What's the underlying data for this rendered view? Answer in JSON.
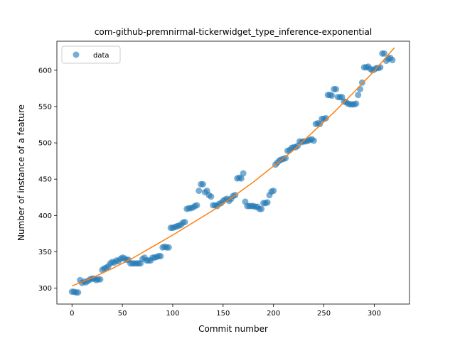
{
  "chart_data": {
    "type": "scatter",
    "title": "com-github-premnirmal-tickerwidget_type_inference-exponential",
    "xlabel": "Commit number",
    "ylabel": "Number of instance of a feature",
    "xlim": [
      -15,
      335
    ],
    "ylim": [
      278,
      640
    ],
    "xticks": [
      0,
      50,
      100,
      150,
      200,
      250,
      300
    ],
    "yticks": [
      300,
      350,
      400,
      450,
      500,
      550,
      600
    ],
    "grid": false,
    "legend_position": "top-left",
    "series": [
      {
        "name": "data",
        "kind": "points",
        "color": "#1f77b4",
        "points": [
          [
            0,
            295
          ],
          [
            2,
            295
          ],
          [
            4,
            294
          ],
          [
            6,
            294
          ],
          [
            8,
            311
          ],
          [
            10,
            307
          ],
          [
            12,
            309
          ],
          [
            14,
            308
          ],
          [
            16,
            310
          ],
          [
            18,
            312
          ],
          [
            20,
            313
          ],
          [
            22,
            313
          ],
          [
            24,
            311
          ],
          [
            26,
            312
          ],
          [
            28,
            312
          ],
          [
            30,
            325
          ],
          [
            32,
            327
          ],
          [
            34,
            328
          ],
          [
            36,
            330
          ],
          [
            38,
            334
          ],
          [
            40,
            336
          ],
          [
            42,
            335
          ],
          [
            44,
            338
          ],
          [
            46,
            337
          ],
          [
            48,
            340
          ],
          [
            50,
            342
          ],
          [
            52,
            341
          ],
          [
            54,
            339
          ],
          [
            56,
            339
          ],
          [
            58,
            334
          ],
          [
            60,
            334
          ],
          [
            62,
            334
          ],
          [
            64,
            334
          ],
          [
            66,
            334
          ],
          [
            68,
            334
          ],
          [
            70,
            340
          ],
          [
            72,
            342
          ],
          [
            74,
            338
          ],
          [
            76,
            338
          ],
          [
            78,
            338
          ],
          [
            80,
            342
          ],
          [
            82,
            342
          ],
          [
            84,
            343
          ],
          [
            86,
            344
          ],
          [
            88,
            344
          ],
          [
            90,
            356
          ],
          [
            92,
            357
          ],
          [
            94,
            356
          ],
          [
            96,
            356
          ],
          [
            98,
            383
          ],
          [
            100,
            383
          ],
          [
            102,
            384
          ],
          [
            104,
            385
          ],
          [
            106,
            386
          ],
          [
            108,
            387
          ],
          [
            110,
            390
          ],
          [
            112,
            391
          ],
          [
            114,
            409
          ],
          [
            116,
            410
          ],
          [
            118,
            410
          ],
          [
            120,
            411
          ],
          [
            122,
            413
          ],
          [
            124,
            414
          ],
          [
            126,
            434
          ],
          [
            128,
            443
          ],
          [
            130,
            443
          ],
          [
            132,
            432
          ],
          [
            134,
            434
          ],
          [
            136,
            428
          ],
          [
            138,
            426
          ],
          [
            140,
            414
          ],
          [
            142,
            414
          ],
          [
            144,
            413
          ],
          [
            146,
            416
          ],
          [
            148,
            417
          ],
          [
            150,
            420
          ],
          [
            152,
            422
          ],
          [
            154,
            423
          ],
          [
            156,
            420
          ],
          [
            158,
            423
          ],
          [
            160,
            427
          ],
          [
            162,
            428
          ],
          [
            164,
            451
          ],
          [
            166,
            452
          ],
          [
            168,
            451
          ],
          [
            170,
            458
          ],
          [
            172,
            419
          ],
          [
            174,
            413
          ],
          [
            176,
            413
          ],
          [
            178,
            413
          ],
          [
            180,
            413
          ],
          [
            182,
            412
          ],
          [
            184,
            412
          ],
          [
            186,
            409
          ],
          [
            188,
            409
          ],
          [
            190,
            417
          ],
          [
            192,
            417
          ],
          [
            194,
            418
          ],
          [
            196,
            428
          ],
          [
            198,
            433
          ],
          [
            200,
            434
          ],
          [
            202,
            470
          ],
          [
            204,
            473
          ],
          [
            206,
            476
          ],
          [
            208,
            477
          ],
          [
            210,
            478
          ],
          [
            212,
            479
          ],
          [
            214,
            489
          ],
          [
            216,
            490
          ],
          [
            218,
            493
          ],
          [
            220,
            494
          ],
          [
            222,
            494
          ],
          [
            224,
            496
          ],
          [
            226,
            502
          ],
          [
            228,
            501
          ],
          [
            230,
            502
          ],
          [
            232,
            502
          ],
          [
            234,
            503
          ],
          [
            236,
            504
          ],
          [
            238,
            505
          ],
          [
            240,
            503
          ],
          [
            242,
            526
          ],
          [
            244,
            527
          ],
          [
            246,
            526
          ],
          [
            248,
            533
          ],
          [
            250,
            533
          ],
          [
            252,
            534
          ],
          [
            254,
            566
          ],
          [
            256,
            566
          ],
          [
            258,
            565
          ],
          [
            260,
            574
          ],
          [
            262,
            574
          ],
          [
            264,
            563
          ],
          [
            266,
            563
          ],
          [
            268,
            563
          ],
          [
            270,
            557
          ],
          [
            272,
            556
          ],
          [
            274,
            554
          ],
          [
            276,
            553
          ],
          [
            278,
            553
          ],
          [
            280,
            553
          ],
          [
            282,
            554
          ],
          [
            284,
            566
          ],
          [
            286,
            574
          ],
          [
            288,
            583
          ],
          [
            290,
            604
          ],
          [
            292,
            604
          ],
          [
            294,
            605
          ],
          [
            296,
            602
          ],
          [
            298,
            600
          ],
          [
            300,
            601
          ],
          [
            302,
            603
          ],
          [
            304,
            603
          ],
          [
            306,
            604
          ],
          [
            308,
            623
          ],
          [
            310,
            623
          ],
          [
            312,
            613
          ],
          [
            314,
            616
          ],
          [
            316,
            617
          ],
          [
            318,
            614
          ]
        ]
      },
      {
        "name": "",
        "kind": "line",
        "color": "#ff7f0e",
        "points": [
          [
            0,
            303
          ],
          [
            20,
            314
          ],
          [
            40,
            327
          ],
          [
            60,
            341
          ],
          [
            80,
            357
          ],
          [
            100,
            373
          ],
          [
            120,
            390
          ],
          [
            140,
            407
          ],
          [
            160,
            426
          ],
          [
            180,
            446
          ],
          [
            200,
            468
          ],
          [
            220,
            490
          ],
          [
            240,
            516
          ],
          [
            260,
            542
          ],
          [
            280,
            570
          ],
          [
            300,
            599
          ],
          [
            320,
            631
          ]
        ]
      }
    ]
  }
}
